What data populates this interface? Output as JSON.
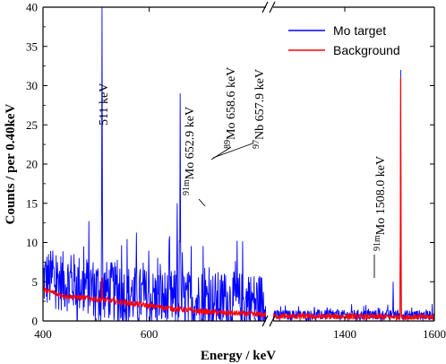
{
  "chart_data": {
    "type": "line",
    "xlabel": "Energy / keV",
    "ylabel": "Counts / per 0.40keV",
    "ylim": [
      0,
      40
    ],
    "yticks": [
      0,
      5,
      10,
      15,
      20,
      25,
      30,
      35,
      40
    ],
    "broken_x_axis": true,
    "segments": [
      {
        "xlim": [
          400,
          820
        ],
        "xticks": [
          400,
          600
        ]
      },
      {
        "xlim": [
          1240,
          1600
        ],
        "xticks": [
          1400,
          1600
        ]
      }
    ],
    "colors": {
      "Mo target": "#0000ff",
      "Background": "#ff0000"
    },
    "legend": {
      "position": "top-right",
      "entries": [
        "Mo target",
        "Background"
      ]
    },
    "series": [
      {
        "name": "Mo target",
        "peaks": [
          {
            "x": 511,
            "y": 40
          },
          {
            "x": 652.9,
            "y": 15
          },
          {
            "x": 658.5,
            "y": 29
          },
          {
            "x": 1525,
            "y": 32
          },
          {
            "x": 1508.0,
            "y": 5
          }
        ],
        "noise_level_segment1": [
          [
            400,
            5
          ],
          [
            460,
            4.5
          ],
          [
            520,
            3.5
          ],
          [
            600,
            2.5
          ],
          [
            700,
            2.2
          ],
          [
            820,
            2
          ]
        ],
        "noise_level_segment2": [
          [
            1240,
            0.7
          ],
          [
            1600,
            0.7
          ]
        ]
      },
      {
        "name": "Background",
        "peaks": [
          {
            "x": 511,
            "y": 5.5
          },
          {
            "x": 1525,
            "y": 31
          }
        ],
        "baseline_segment1": [
          [
            400,
            4
          ],
          [
            440,
            3.2
          ],
          [
            500,
            2.8
          ],
          [
            560,
            2.3
          ],
          [
            640,
            1.6
          ],
          [
            720,
            1.1
          ],
          [
            820,
            0.8
          ]
        ],
        "baseline_segment2": [
          [
            1240,
            0.6
          ],
          [
            1600,
            0.5
          ]
        ]
      }
    ],
    "annotations": [
      {
        "text": "511 keV",
        "x": 511
      },
      {
        "sup": "91m",
        "text": "Mo 652.9 keV",
        "x": 652.9
      },
      {
        "sup": "89",
        "text": "Mo 658.6 keV",
        "x": 658.6
      },
      {
        "sup": "97",
        "text": "Nb 657.9 keV",
        "x": 658.6
      },
      {
        "sup": "91m",
        "text": "Mo 1508.0 keV",
        "x": 1508.0
      }
    ]
  }
}
